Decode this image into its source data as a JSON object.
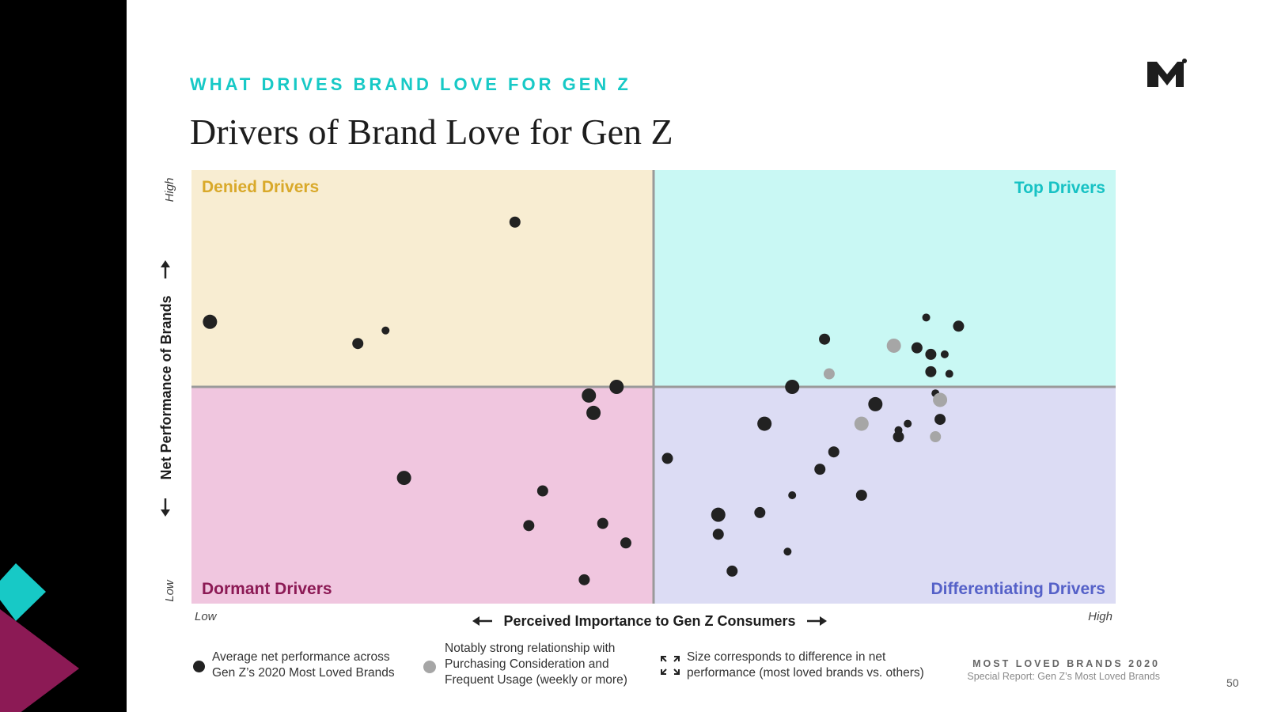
{
  "header": {
    "eyebrow": "WHAT DRIVES BRAND LOVE FOR GEN Z",
    "title": "Drivers of Brand Love for Gen Z"
  },
  "chart_data": {
    "type": "scatter",
    "x_range": [
      0,
      100
    ],
    "y_range": [
      0,
      100
    ],
    "xlabel": "Perceived Importance to Gen Z Consumers",
    "ylabel": "Net Performance of Brands",
    "x_low": "Low",
    "x_high": "High",
    "y_low": "Low",
    "y_high": "High",
    "quadrants": {
      "top_left": {
        "label": "Denied Drivers",
        "fill": "#f8edd2",
        "text_color": "#d9a92a"
      },
      "top_right": {
        "label": "Top Drivers",
        "fill": "#c9f8f4",
        "text_color": "#17c2c4"
      },
      "bottom_left": {
        "label": "Dormant Drivers",
        "fill": "#f0c6df",
        "text_color": "#8c1a55"
      },
      "bottom_right": {
        "label": "Differentiating Drivers",
        "fill": "#dcdcf4",
        "text_color": "#5561c8"
      }
    },
    "point_colors": {
      "average": "#222222",
      "strong": "#a6a6a6"
    },
    "points": [
      {
        "x": 35,
        "y": 88,
        "r": 7,
        "strong": false
      },
      {
        "x": 2,
        "y": 65,
        "r": 9,
        "strong": false
      },
      {
        "x": 18,
        "y": 60,
        "r": 7,
        "strong": false
      },
      {
        "x": 21,
        "y": 63,
        "r": 5,
        "strong": false
      },
      {
        "x": 46,
        "y": 50,
        "r": 9,
        "strong": false
      },
      {
        "x": 43,
        "y": 48,
        "r": 9,
        "strong": false
      },
      {
        "x": 43.5,
        "y": 44,
        "r": 9,
        "strong": false
      },
      {
        "x": 23,
        "y": 29,
        "r": 9,
        "strong": false
      },
      {
        "x": 38,
        "y": 26,
        "r": 7,
        "strong": false
      },
      {
        "x": 36.5,
        "y": 18,
        "r": 7,
        "strong": false
      },
      {
        "x": 44.5,
        "y": 18.5,
        "r": 7,
        "strong": false
      },
      {
        "x": 47,
        "y": 14,
        "r": 7,
        "strong": false
      },
      {
        "x": 42.5,
        "y": 5.5,
        "r": 7,
        "strong": false
      },
      {
        "x": 68.5,
        "y": 61,
        "r": 7,
        "strong": false
      },
      {
        "x": 76,
        "y": 59.5,
        "r": 9,
        "strong": true
      },
      {
        "x": 78.5,
        "y": 59,
        "r": 7,
        "strong": false
      },
      {
        "x": 79.5,
        "y": 66,
        "r": 5,
        "strong": false
      },
      {
        "x": 80,
        "y": 57.5,
        "r": 7,
        "strong": false
      },
      {
        "x": 81.5,
        "y": 57.5,
        "r": 5,
        "strong": false
      },
      {
        "x": 83,
        "y": 64,
        "r": 7,
        "strong": false
      },
      {
        "x": 69,
        "y": 53,
        "r": 7,
        "strong": true
      },
      {
        "x": 80,
        "y": 53.5,
        "r": 7,
        "strong": false
      },
      {
        "x": 82,
        "y": 53,
        "r": 5,
        "strong": false
      },
      {
        "x": 65,
        "y": 50,
        "r": 9,
        "strong": false
      },
      {
        "x": 74,
        "y": 46,
        "r": 9,
        "strong": false
      },
      {
        "x": 80.5,
        "y": 48.5,
        "r": 5,
        "strong": false
      },
      {
        "x": 81,
        "y": 47,
        "r": 9,
        "strong": true
      },
      {
        "x": 62,
        "y": 41.5,
        "r": 9,
        "strong": false
      },
      {
        "x": 72.5,
        "y": 41.5,
        "r": 9,
        "strong": true
      },
      {
        "x": 77.5,
        "y": 41.5,
        "r": 5,
        "strong": false
      },
      {
        "x": 76.5,
        "y": 40,
        "r": 5,
        "strong": false
      },
      {
        "x": 76.5,
        "y": 38.5,
        "r": 7,
        "strong": false
      },
      {
        "x": 81,
        "y": 42.5,
        "r": 7,
        "strong": false
      },
      {
        "x": 80.5,
        "y": 38.5,
        "r": 7,
        "strong": true
      },
      {
        "x": 69.5,
        "y": 35,
        "r": 7,
        "strong": false
      },
      {
        "x": 68,
        "y": 31,
        "r": 7,
        "strong": false
      },
      {
        "x": 51.5,
        "y": 33.5,
        "r": 7,
        "strong": false
      },
      {
        "x": 65,
        "y": 25,
        "r": 5,
        "strong": false
      },
      {
        "x": 72.5,
        "y": 25,
        "r": 7,
        "strong": false
      },
      {
        "x": 57,
        "y": 20.5,
        "r": 9,
        "strong": false
      },
      {
        "x": 61.5,
        "y": 21,
        "r": 7,
        "strong": false
      },
      {
        "x": 57,
        "y": 16,
        "r": 7,
        "strong": false
      },
      {
        "x": 64.5,
        "y": 12,
        "r": 5,
        "strong": false
      },
      {
        "x": 58.5,
        "y": 7.5,
        "r": 7,
        "strong": false
      }
    ]
  },
  "legend": {
    "average_line1": "Average net performance across",
    "average_line2": "Gen Z’s 2020 Most Loved Brands",
    "strong_line1": "Notably strong relationship with",
    "strong_line2": "Purchasing Consideration and",
    "strong_line3": "Frequent Usage (weekly or more)",
    "size_line1": "Size corresponds to difference in net",
    "size_line2": "performance (most loved brands vs. others)"
  },
  "footer": {
    "brand": "MOST LOVED BRANDS 2020",
    "subtitle": "Special Report: Gen Z’s Most Loved Brands",
    "page_number": "50"
  },
  "colors": {
    "accent_teal": "#17c9c6",
    "accent_magenta": "#8c1a55"
  }
}
